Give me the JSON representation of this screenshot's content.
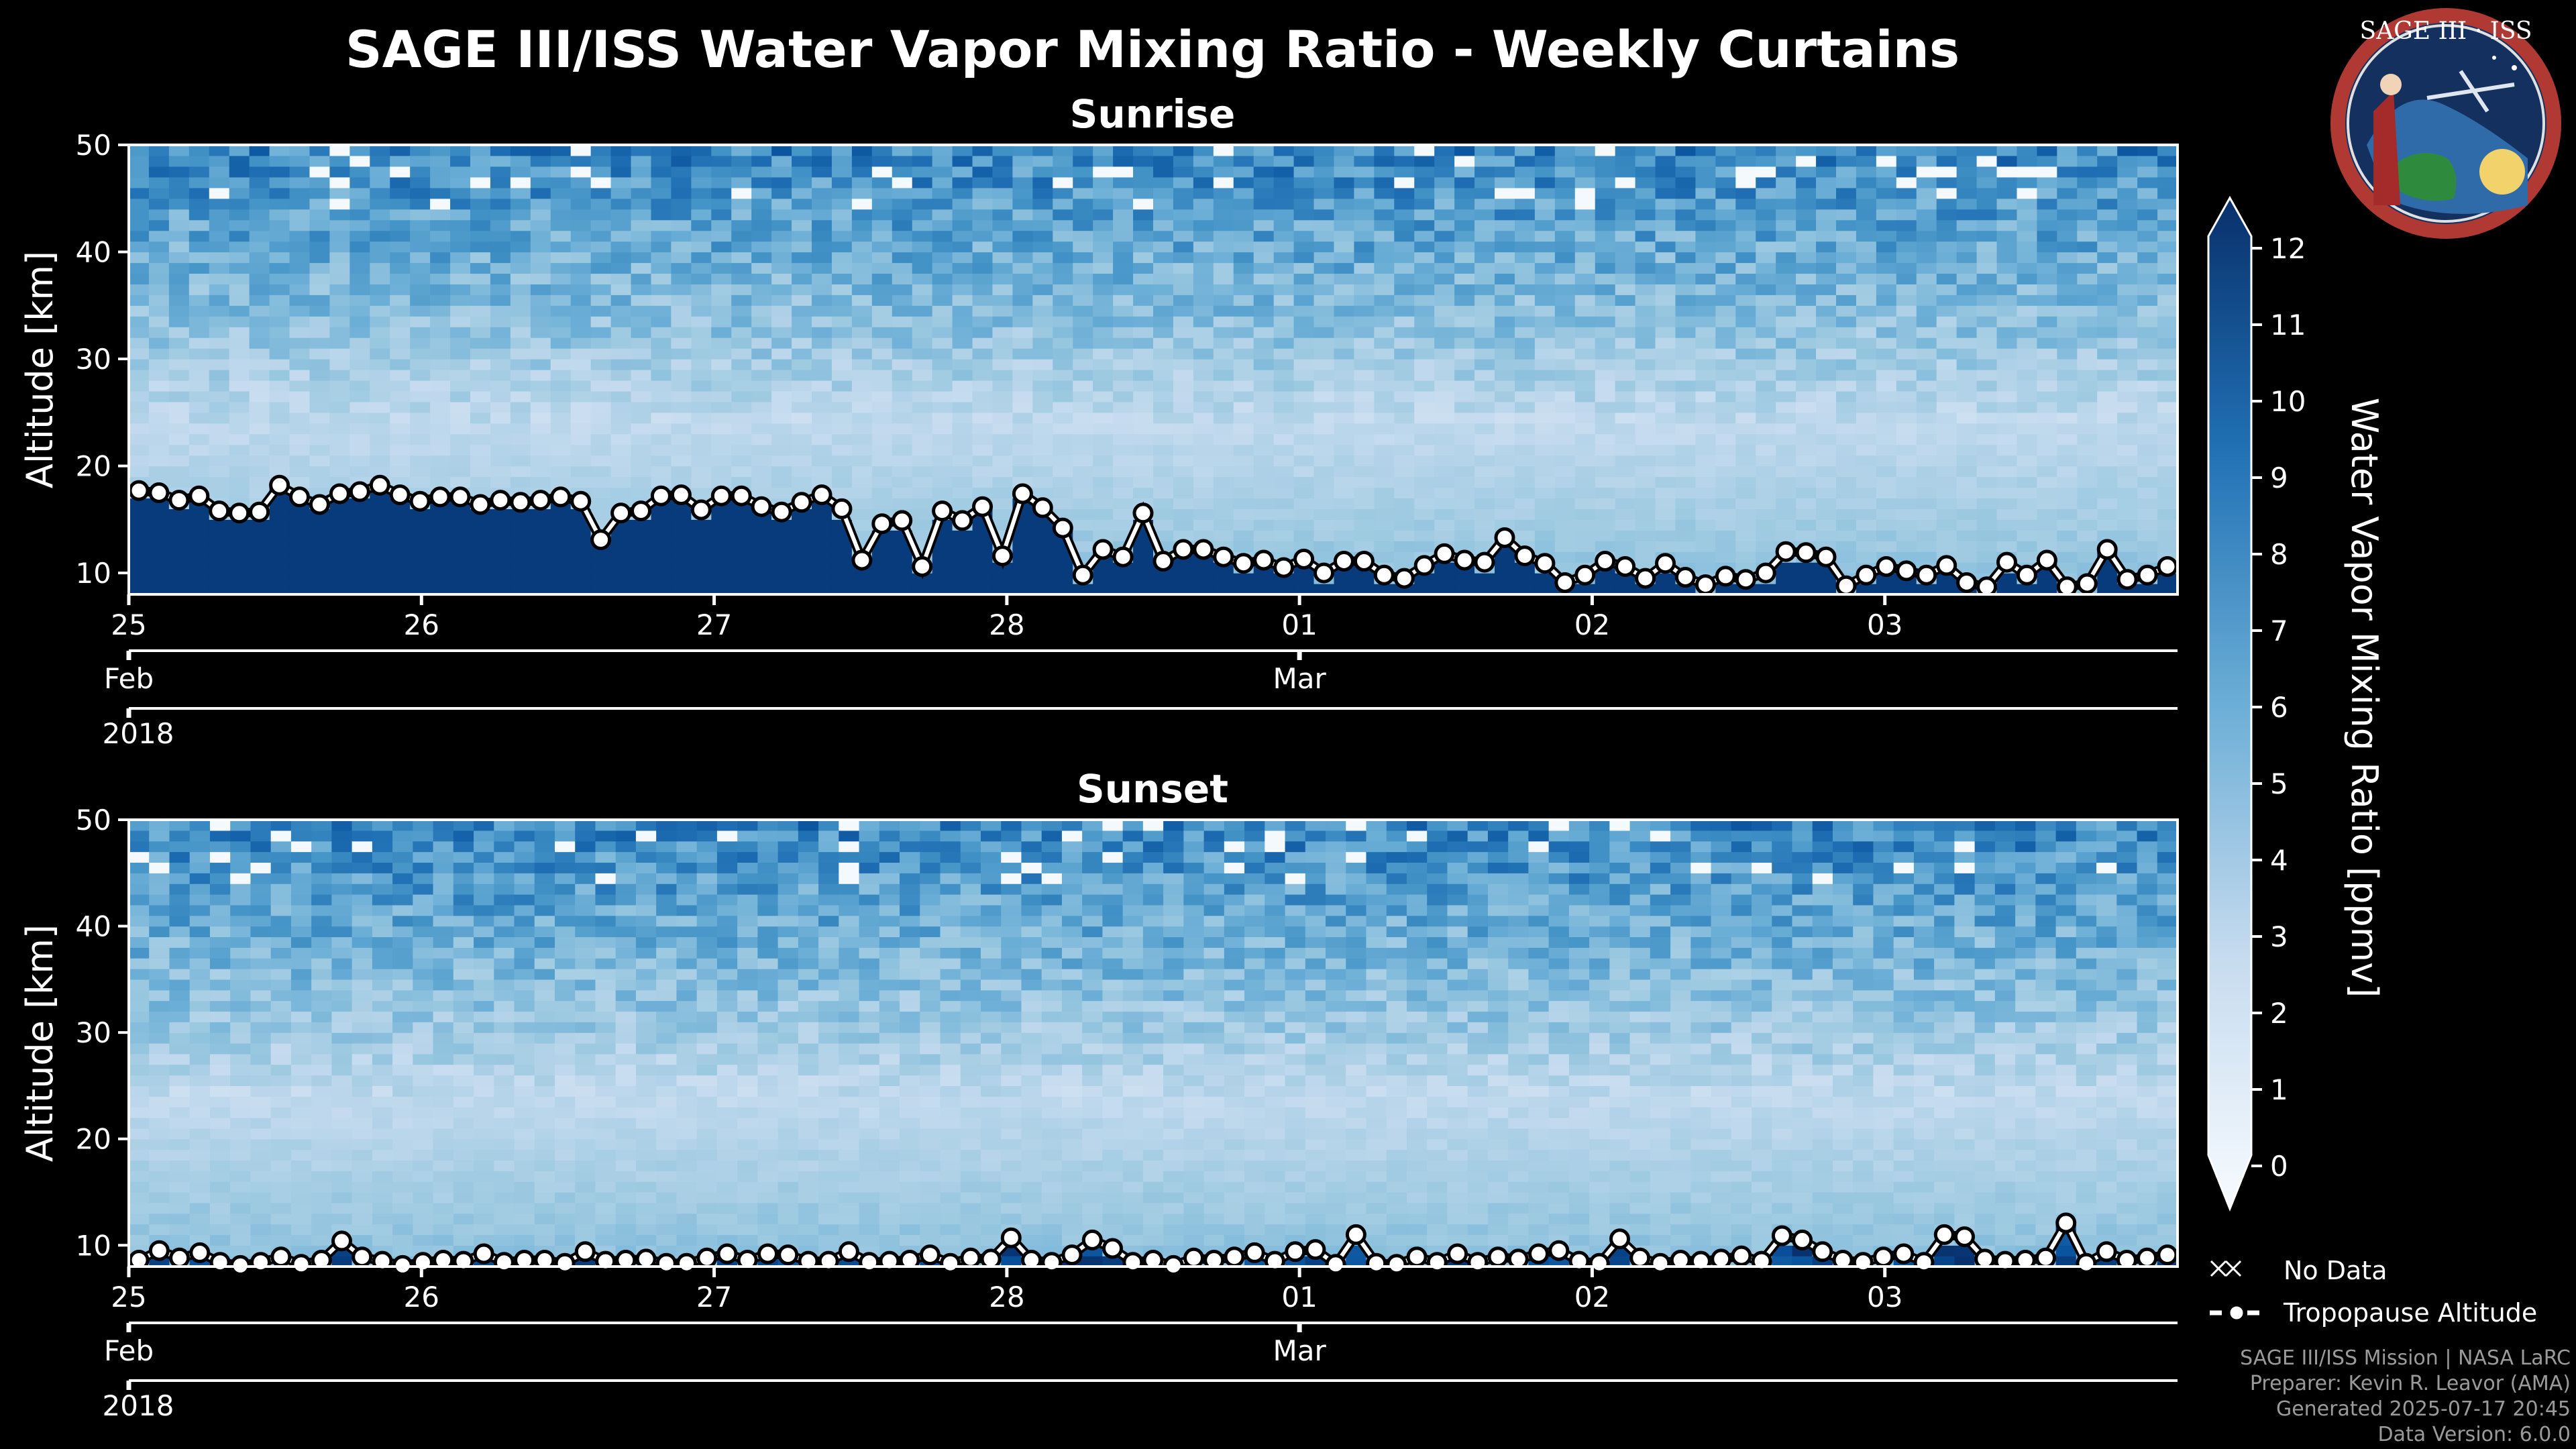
{
  "title": "SAGE III/ISS Water Vapor Mixing Ratio - Weekly Curtains",
  "logo": {
    "text": "SAGE III · ISS"
  },
  "credits": [
    "SAGE III/ISS Mission | NASA LaRC",
    "Preparer: Kevin R. Leavor (AMA)",
    "Generated 2025-07-17 20:45",
    "Data Version: 6.0.0"
  ],
  "legend": {
    "no_data": "No Data",
    "tropopause": "Tropopause Altitude"
  },
  "colorbar": {
    "label": "Water Vapor Mixing Ratio [ppmv]",
    "min": 0,
    "max": 12,
    "ticks": [
      "0",
      "1",
      "2",
      "3",
      "4",
      "5",
      "6",
      "7",
      "8",
      "9",
      "10",
      "11",
      "12"
    ],
    "colors": [
      "#f7fbff",
      "#08306b"
    ]
  },
  "chart_data": [
    {
      "type": "heatmap",
      "title": "Sunrise",
      "ylabel": "Altitude [km]",
      "ylim": [
        8,
        50
      ],
      "yticks": [
        "10",
        "20",
        "30",
        "40",
        "50"
      ],
      "xlim": [
        0,
        7
      ],
      "x_day_ticks": [
        "25",
        "26",
        "27",
        "28",
        "01",
        "02",
        "03"
      ],
      "x_month_labels": [
        {
          "pos": 0,
          "label": "Feb"
        },
        {
          "pos": 4,
          "label": "Mar"
        }
      ],
      "x_year_label": "2018",
      "tropopause_km": [
        17.7,
        17.5,
        16.8,
        17.2,
        15.8,
        15.6,
        15.7,
        18.2,
        17.1,
        16.4,
        17.4,
        17.6,
        18.2,
        17.3,
        16.7,
        17.1,
        17.1,
        16.4,
        16.8,
        16.6,
        16.8,
        17.1,
        16.7,
        13.1,
        15.6,
        15.8,
        17.2,
        17.3,
        15.9,
        17.2,
        17.2,
        16.2,
        15.7,
        16.6,
        17.3,
        16.0,
        11.2,
        14.6,
        14.9,
        10.6,
        15.8,
        14.9,
        16.2,
        11.6,
        17.4,
        16.1,
        14.2,
        9.8,
        12.2,
        11.5,
        15.6,
        11.1,
        12.2,
        12.2,
        11.5,
        10.9,
        11.2,
        10.5,
        11.3,
        10.0,
        11.1,
        11.1,
        9.8,
        9.5,
        10.7,
        11.8,
        11.2,
        11.0,
        13.3,
        11.6,
        10.9,
        9.1,
        9.8,
        11.1,
        10.6,
        9.5,
        10.9,
        9.6,
        8.9,
        9.7,
        9.4,
        10.0,
        12.0,
        11.9,
        11.5,
        8.8,
        9.8,
        10.6,
        10.2,
        9.8,
        10.7,
        9.1,
        8.7,
        11.0,
        9.8,
        11.2,
        8.7,
        9.0,
        12.2,
        9.4,
        9.8,
        10.6
      ]
    },
    {
      "type": "heatmap",
      "title": "Sunset",
      "ylabel": "Altitude [km]",
      "ylim": [
        8,
        50
      ],
      "yticks": [
        "10",
        "20",
        "30",
        "40",
        "50"
      ],
      "xlim": [
        0,
        7
      ],
      "x_day_ticks": [
        "25",
        "26",
        "27",
        "28",
        "01",
        "02",
        "03"
      ],
      "x_month_labels": [
        {
          "pos": 0,
          "label": "Feb"
        },
        {
          "pos": 4,
          "label": "Mar"
        }
      ],
      "x_year_label": "2018",
      "tropopause_km": [
        8.6,
        9.5,
        8.8,
        9.3,
        8.4,
        8.1,
        8.4,
        8.9,
        8.2,
        8.6,
        10.4,
        8.9,
        8.5,
        8.1,
        8.4,
        8.6,
        8.5,
        9.2,
        8.4,
        8.6,
        8.6,
        8.3,
        9.4,
        8.5,
        8.6,
        8.7,
        8.3,
        8.3,
        8.8,
        9.2,
        8.6,
        9.2,
        9.1,
        8.5,
        8.5,
        9.4,
        8.4,
        8.5,
        8.6,
        9.1,
        8.3,
        8.8,
        8.7,
        10.7,
        8.6,
        8.4,
        9.1,
        10.5,
        9.7,
        8.4,
        8.6,
        8.1,
        8.8,
        8.6,
        8.9,
        9.3,
        8.5,
        9.4,
        9.6,
        8.2,
        11.0,
        8.3,
        8.2,
        8.9,
        8.4,
        9.2,
        8.4,
        8.9,
        8.7,
        9.2,
        9.5,
        8.5,
        8.3,
        10.6,
        8.8,
        8.3,
        8.6,
        8.5,
        8.7,
        9.0,
        8.5,
        10.9,
        10.5,
        9.4,
        8.6,
        8.4,
        8.9,
        9.2,
        8.4,
        11.0,
        10.8,
        8.7,
        8.5,
        8.6,
        8.8,
        12.1,
        8.3,
        9.4,
        8.6,
        8.8,
        9.1
      ]
    }
  ]
}
